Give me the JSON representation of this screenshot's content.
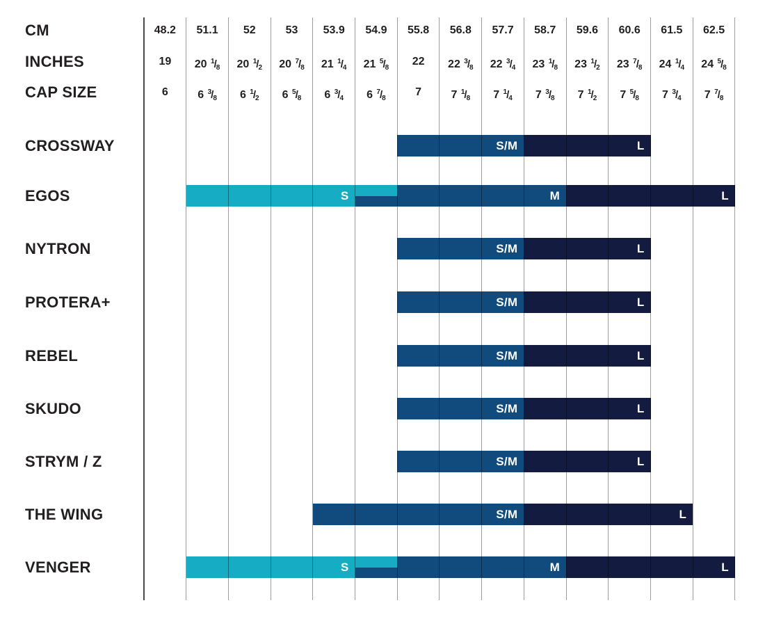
{
  "header": {
    "rows": [
      {
        "label": "CM",
        "values": [
          "48.2",
          "51.1",
          "52",
          "53",
          "53.9",
          "54.9",
          "55.8",
          "56.8",
          "57.7",
          "58.7",
          "59.6",
          "60.6",
          "61.5",
          "62.5"
        ]
      },
      {
        "label": "INCHES",
        "values": [
          "19",
          "20 1/8",
          "20 1/2",
          "20 7/8",
          "21 1/4",
          "21 5/8",
          "22",
          "22 3/8",
          "22 3/4",
          "23 1/8",
          "23 1/2",
          "23 7/8",
          "24 1/4",
          "24 5/8"
        ]
      },
      {
        "label": "CAP SIZE",
        "values": [
          "6",
          "6 3/8",
          "6 1/2",
          "6 5/8",
          "6 3/4",
          "6 7/8",
          "7",
          "7 1/8",
          "7 1/4",
          "7 3/8",
          "7 1/2",
          "7 5/8",
          "7 3/4",
          "7 7/8"
        ]
      }
    ]
  },
  "colors": {
    "size_s_cyan": "#16adc4",
    "size_m_blue": "#114a7c",
    "size_l_navy": "#131b40",
    "text_dark": "#231f20",
    "bar_label_white": "#ffffff",
    "gridline": "rgba(0,0,0,0.38)",
    "gridline_first": "#4a4a4a"
  },
  "products": [
    {
      "name": "CROSSWAY",
      "segments": [
        {
          "label": "S/M",
          "color": "size_m_blue",
          "from": 6,
          "to": 9,
          "band": "full"
        },
        {
          "label": "L",
          "color": "size_l_navy",
          "from": 9,
          "to": 12,
          "band": "full"
        }
      ]
    },
    {
      "name": "EGOS",
      "segments": [
        {
          "label": "S",
          "color": "size_s_cyan",
          "from": 1,
          "to": 5,
          "band": "full"
        },
        {
          "label": "",
          "color": "size_s_cyan",
          "from": 5,
          "to": 6,
          "band": "top"
        },
        {
          "label": "",
          "color": "size_m_blue",
          "from": 5,
          "to": 6,
          "band": "bottom"
        },
        {
          "label": "M",
          "color": "size_m_blue",
          "from": 6,
          "to": 10,
          "band": "full"
        },
        {
          "label": "L",
          "color": "size_l_navy",
          "from": 10,
          "to": 14,
          "band": "full"
        }
      ]
    },
    {
      "name": "NYTRON",
      "segments": [
        {
          "label": "S/M",
          "color": "size_m_blue",
          "from": 6,
          "to": 9,
          "band": "full"
        },
        {
          "label": "L",
          "color": "size_l_navy",
          "from": 9,
          "to": 12,
          "band": "full"
        }
      ]
    },
    {
      "name": "PROTERA+",
      "segments": [
        {
          "label": "S/M",
          "color": "size_m_blue",
          "from": 6,
          "to": 9,
          "band": "full"
        },
        {
          "label": "L",
          "color": "size_l_navy",
          "from": 9,
          "to": 12,
          "band": "full"
        }
      ]
    },
    {
      "name": "REBEL",
      "segments": [
        {
          "label": "S/M",
          "color": "size_m_blue",
          "from": 6,
          "to": 9,
          "band": "full"
        },
        {
          "label": "L",
          "color": "size_l_navy",
          "from": 9,
          "to": 12,
          "band": "full"
        }
      ]
    },
    {
      "name": "SKUDO",
      "segments": [
        {
          "label": "S/M",
          "color": "size_m_blue",
          "from": 6,
          "to": 9,
          "band": "full"
        },
        {
          "label": "L",
          "color": "size_l_navy",
          "from": 9,
          "to": 12,
          "band": "full"
        }
      ]
    },
    {
      "name": "STRYM / Z",
      "segments": [
        {
          "label": "S/M",
          "color": "size_m_blue",
          "from": 6,
          "to": 9,
          "band": "full"
        },
        {
          "label": "L",
          "color": "size_l_navy",
          "from": 9,
          "to": 12,
          "band": "full"
        }
      ]
    },
    {
      "name": "THE WING",
      "segments": [
        {
          "label": "S/M",
          "color": "size_m_blue",
          "from": 4,
          "to": 9,
          "band": "full"
        },
        {
          "label": "L",
          "color": "size_l_navy",
          "from": 9,
          "to": 13,
          "band": "full"
        }
      ]
    },
    {
      "name": "VENGER",
      "segments": [
        {
          "label": "S",
          "color": "size_s_cyan",
          "from": 1,
          "to": 5,
          "band": "full"
        },
        {
          "label": "",
          "color": "size_s_cyan",
          "from": 5,
          "to": 6,
          "band": "top"
        },
        {
          "label": "",
          "color": "size_m_blue",
          "from": 5,
          "to": 6,
          "band": "bottom"
        },
        {
          "label": "M",
          "color": "size_m_blue",
          "from": 6,
          "to": 10,
          "band": "full"
        },
        {
          "label": "L",
          "color": "size_l_navy",
          "from": 10,
          "to": 14,
          "band": "full"
        }
      ]
    }
  ],
  "chart_data": {
    "type": "table",
    "columns": {
      "cm": [
        48.2,
        51.1,
        52,
        53,
        53.9,
        54.9,
        55.8,
        56.8,
        57.7,
        58.7,
        59.6,
        60.6,
        61.5,
        62.5
      ],
      "inches": [
        "19",
        "20 1/8",
        "20 1/2",
        "20 7/8",
        "21 1/4",
        "21 5/8",
        "22",
        "22 3/8",
        "22 3/4",
        "23 1/8",
        "23 1/2",
        "23 7/8",
        "24 1/4",
        "24 5/8"
      ],
      "cap_size": [
        "6",
        "6 3/8",
        "6 1/2",
        "6 5/8",
        "6 3/4",
        "6 7/8",
        "7",
        "7 1/8",
        "7 1/4",
        "7 3/8",
        "7 1/2",
        "7 5/8",
        "7 3/4",
        "7 7/8"
      ]
    },
    "rows": [
      {
        "product": "CROSSWAY",
        "ranges": [
          {
            "size": "S/M",
            "cm_min": 55.8,
            "cm_max": 58.7
          },
          {
            "size": "L",
            "cm_min": 58.7,
            "cm_max": 61.5
          }
        ]
      },
      {
        "product": "EGOS",
        "ranges": [
          {
            "size": "S",
            "cm_min": 51.1,
            "cm_max": 55.8
          },
          {
            "size": "M",
            "cm_min": 54.9,
            "cm_max": 59.6
          },
          {
            "size": "L",
            "cm_min": 59.6,
            "cm_max": 62.5
          }
        ]
      },
      {
        "product": "NYTRON",
        "ranges": [
          {
            "size": "S/M",
            "cm_min": 55.8,
            "cm_max": 58.7
          },
          {
            "size": "L",
            "cm_min": 58.7,
            "cm_max": 61.5
          }
        ]
      },
      {
        "product": "PROTERA+",
        "ranges": [
          {
            "size": "S/M",
            "cm_min": 55.8,
            "cm_max": 58.7
          },
          {
            "size": "L",
            "cm_min": 58.7,
            "cm_max": 61.5
          }
        ]
      },
      {
        "product": "REBEL",
        "ranges": [
          {
            "size": "S/M",
            "cm_min": 55.8,
            "cm_max": 58.7
          },
          {
            "size": "L",
            "cm_min": 58.7,
            "cm_max": 61.5
          }
        ]
      },
      {
        "product": "SKUDO",
        "ranges": [
          {
            "size": "S/M",
            "cm_min": 55.8,
            "cm_max": 58.7
          },
          {
            "size": "L",
            "cm_min": 58.7,
            "cm_max": 61.5
          }
        ]
      },
      {
        "product": "STRYM / Z",
        "ranges": [
          {
            "size": "S/M",
            "cm_min": 55.8,
            "cm_max": 58.7
          },
          {
            "size": "L",
            "cm_min": 58.7,
            "cm_max": 61.5
          }
        ]
      },
      {
        "product": "THE WING",
        "ranges": [
          {
            "size": "S/M",
            "cm_min": 53.9,
            "cm_max": 58.7
          },
          {
            "size": "L",
            "cm_min": 58.7,
            "cm_max": 62.5
          }
        ]
      },
      {
        "product": "VENGER",
        "ranges": [
          {
            "size": "S",
            "cm_min": 51.1,
            "cm_max": 55.8
          },
          {
            "size": "M",
            "cm_min": 54.9,
            "cm_max": 59.6
          },
          {
            "size": "L",
            "cm_min": 59.6,
            "cm_max": 62.5
          }
        ]
      }
    ],
    "legend_sizes": [
      "S",
      "S/M",
      "M",
      "L"
    ],
    "grid": true
  }
}
